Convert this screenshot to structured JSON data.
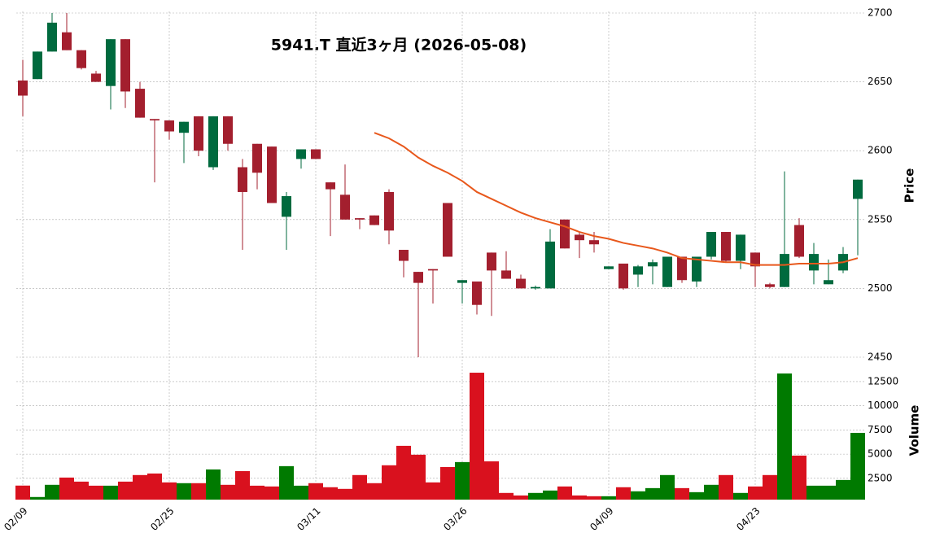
{
  "chart_data": [
    {
      "type": "candlestick",
      "title": "5941.T  直近3ヶ月 (2026-05-08)",
      "ylabel": "Price",
      "categories": [
        "02/09",
        null,
        null,
        null,
        null,
        null,
        null,
        null,
        null,
        null,
        "02/25",
        null,
        null,
        null,
        null,
        null,
        null,
        null,
        null,
        null,
        "03/11",
        null,
        null,
        null,
        null,
        null,
        null,
        null,
        null,
        null,
        "03/26",
        null,
        null,
        null,
        null,
        null,
        null,
        null,
        null,
        null,
        "04/09",
        null,
        null,
        null,
        null,
        null,
        null,
        null,
        null,
        null,
        "04/23",
        null,
        null,
        null,
        null,
        null,
        null,
        null
      ],
      "open": [
        2651,
        2652,
        2672,
        2686,
        2673,
        2656,
        2647,
        2681,
        2645,
        2623,
        2622,
        2613,
        2625,
        2588,
        2625,
        2588,
        2605,
        2603,
        2552,
        2594,
        2601,
        2577,
        2568,
        2551,
        2553,
        2570,
        2528,
        2512,
        2514,
        2562,
        2504,
        2505,
        2526,
        2513,
        2507,
        2500,
        2500,
        2550,
        2539,
        2535,
        2514,
        2518,
        2510,
        2516,
        2501,
        2523,
        2505,
        2523,
        2541,
        2520,
        2526,
        2503,
        2501,
        2546,
        2513,
        2503,
        2513,
        2565
      ],
      "high": [
        2666,
        2672,
        2700,
        2700,
        2673,
        2658,
        2681,
        2681,
        2650,
        2623,
        2622,
        2621,
        2625,
        2625,
        2625,
        2594,
        2605,
        2603,
        2570,
        2601,
        2601,
        2577,
        2590,
        2551,
        2553,
        2572,
        2528,
        2512,
        2514,
        2562,
        2506,
        2505,
        2526,
        2527,
        2510,
        2502,
        2543,
        2550,
        2541,
        2541,
        2516,
        2518,
        2517,
        2521,
        2523,
        2523,
        2523,
        2541,
        2541,
        2539,
        2526,
        2504,
        2585,
        2551,
        2533,
        2521,
        2530,
        2579
      ],
      "low": [
        2625,
        2652,
        2672,
        2673,
        2659,
        2650,
        2630,
        2631,
        2624,
        2577,
        2608,
        2591,
        2596,
        2586,
        2600,
        2528,
        2572,
        2562,
        2528,
        2587,
        2594,
        2538,
        2550,
        2543,
        2546,
        2532,
        2508,
        2450,
        2489,
        2523,
        2489,
        2481,
        2480,
        2507,
        2500,
        2499,
        2500,
        2529,
        2522,
        2526,
        2514,
        2499,
        2501,
        2503,
        2501,
        2504,
        2501,
        2521,
        2519,
        2514,
        2501,
        2500,
        2501,
        2522,
        2503,
        2503,
        2511,
        2524
      ],
      "close": [
        2640,
        2672,
        2693,
        2673,
        2660,
        2650,
        2681,
        2643,
        2624,
        2622,
        2614,
        2621,
        2600,
        2625,
        2605,
        2570,
        2584,
        2562,
        2567,
        2601,
        2594,
        2572,
        2550,
        2550,
        2546,
        2542,
        2520,
        2504,
        2513,
        2523,
        2506,
        2488,
        2513,
        2507,
        2500,
        2501,
        2534,
        2529,
        2535,
        2532,
        2516,
        2500,
        2516,
        2519,
        2523,
        2506,
        2523,
        2541,
        2520,
        2539,
        2516,
        2501,
        2525,
        2523,
        2525,
        2506,
        2525,
        2579
      ],
      "ma_values": [
        null,
        null,
        null,
        null,
        null,
        null,
        null,
        null,
        null,
        null,
        null,
        null,
        null,
        null,
        null,
        null,
        null,
        null,
        null,
        null,
        null,
        null,
        null,
        null,
        2613,
        2609,
        2603,
        2595,
        2589,
        2584,
        2578,
        2570,
        2565,
        2560,
        2555,
        2551,
        2548,
        2545,
        2541,
        2538,
        2536,
        2533,
        2531,
        2529,
        2526,
        2522,
        2521,
        2520,
        2519,
        2519,
        2517,
        2517,
        2517,
        2518,
        2518,
        2518,
        2519,
        2522
      ],
      "ma_color": "#e8581c",
      "up_color": "#006a3e",
      "down_color": "#a31f2e",
      "ylim": [
        2450,
        2700
      ],
      "yticks": [
        2450,
        2500,
        2550,
        2600,
        2650,
        2700
      ],
      "grid": true
    },
    {
      "type": "bar",
      "ylabel": "Volume",
      "values": [
        1750,
        570,
        1830,
        2580,
        2160,
        1740,
        1740,
        2160,
        2840,
        3000,
        2080,
        2000,
        2000,
        3420,
        1830,
        3250,
        1740,
        1660,
        3760,
        1740,
        2000,
        1580,
        1410,
        2840,
        2000,
        3850,
        5860,
        4940,
        2080,
        3670,
        4180,
        13420,
        4260,
        990,
        730,
        990,
        1240,
        1660,
        730,
        650,
        650,
        1580,
        1160,
        1490,
        2840,
        1490,
        1070,
        1830,
        2840,
        990,
        1660,
        2840,
        13340,
        4850,
        1740,
        1740,
        2330,
        7200
      ],
      "up_color": "#007a00",
      "down_color": "#d9111e",
      "ylim": [
        300,
        14600
      ],
      "yticks": [
        2500,
        5000,
        7500,
        10000,
        12500
      ],
      "grid": true
    }
  ]
}
